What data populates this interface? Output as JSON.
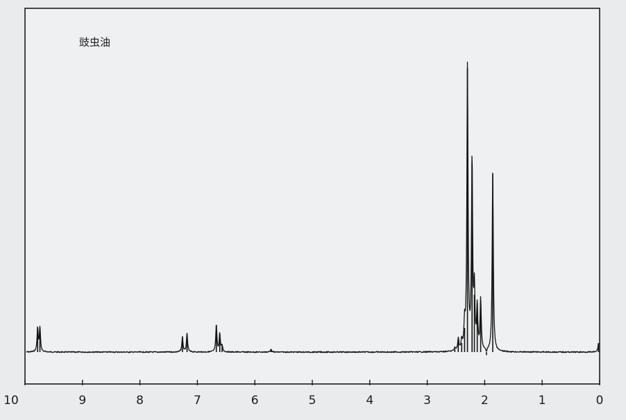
{
  "chart_data": {
    "type": "line",
    "title": "豉虫油",
    "xlabel": "",
    "ylabel": "",
    "x_axis_reversed": true,
    "xlim": [
      10,
      0
    ],
    "ylim": [
      0,
      1
    ],
    "baseline": 0.06,
    "grid": false,
    "ticks": [
      10,
      9,
      8,
      7,
      6,
      5,
      4,
      3,
      2,
      1,
      0
    ],
    "tick_labels": [
      "10",
      "9",
      "8",
      "7",
      "6",
      "5",
      "4",
      "3",
      "2",
      "1",
      "0"
    ],
    "series": [
      {
        "peaks": [
          {
            "ppm": 9.78,
            "height": 0.14
          },
          {
            "ppm": 9.74,
            "height": 0.14
          },
          {
            "ppm": 7.26,
            "height": 0.11
          },
          {
            "ppm": 7.18,
            "height": 0.12
          },
          {
            "ppm": 6.67,
            "height": 0.15
          },
          {
            "ppm": 6.61,
            "height": 0.12
          },
          {
            "ppm": 6.57,
            "height": 0.08
          },
          {
            "ppm": 6.52,
            "height": 0.06
          },
          {
            "ppm": 5.72,
            "height": 0.07
          },
          {
            "ppm": 5.68,
            "height": 0.06
          },
          {
            "ppm": 2.52,
            "height": 0.07
          },
          {
            "ppm": 2.46,
            "height": 0.1
          },
          {
            "ppm": 2.4,
            "height": 0.09
          },
          {
            "ppm": 2.35,
            "height": 0.14
          },
          {
            "ppm": 2.3,
            "height": 1.0
          },
          {
            "ppm": 2.22,
            "height": 0.69
          },
          {
            "ppm": 2.18,
            "height": 0.25
          },
          {
            "ppm": 2.13,
            "height": 0.2
          },
          {
            "ppm": 2.07,
            "height": 0.23
          },
          {
            "ppm": 1.97,
            "height": 0.05
          },
          {
            "ppm": 1.86,
            "height": 0.65
          },
          {
            "ppm": 0.02,
            "height": 0.09
          }
        ]
      }
    ]
  }
}
